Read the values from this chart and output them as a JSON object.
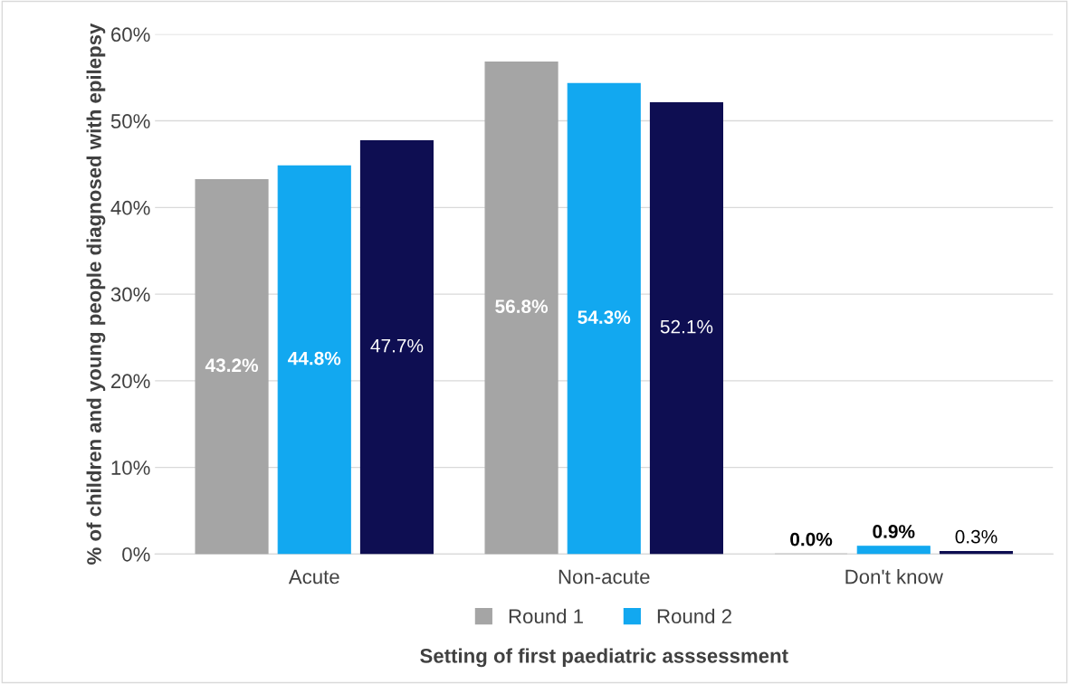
{
  "chart_data": {
    "type": "bar",
    "xlabel": "Setting of first paediatric asssessment",
    "ylabel": "% of children and young people diagnosed with epilepsy",
    "categories": [
      "Acute",
      "Non-acute",
      "Don't know"
    ],
    "series": [
      {
        "name": "Round 1",
        "color": "#a5a5a5",
        "values": [
          43.2,
          56.8,
          0.0
        ],
        "value_labels": [
          "43.2%",
          "56.8%",
          "0.0%"
        ]
      },
      {
        "name": "Round 2",
        "color": "#12a8f0",
        "values": [
          44.8,
          54.3,
          0.9
        ],
        "value_labels": [
          "44.8%",
          "54.3%",
          "0.9%"
        ]
      },
      {
        "color": "#0e0e52",
        "values": [
          47.7,
          52.1,
          0.3
        ],
        "value_labels": [
          "47.7%",
          "52.1%",
          "0.3%"
        ]
      }
    ],
    "ylim": [
      0,
      60
    ],
    "yticks": [
      {
        "value": 0,
        "label": "0%"
      },
      {
        "value": 10,
        "label": "10%"
      },
      {
        "value": 20,
        "label": "20%"
      },
      {
        "value": 30,
        "label": "30%"
      },
      {
        "value": 40,
        "label": "40%"
      },
      {
        "value": 50,
        "label": "50%"
      },
      {
        "value": 60,
        "label": "60%"
      }
    ],
    "grid": "y",
    "legend": "bottom"
  }
}
